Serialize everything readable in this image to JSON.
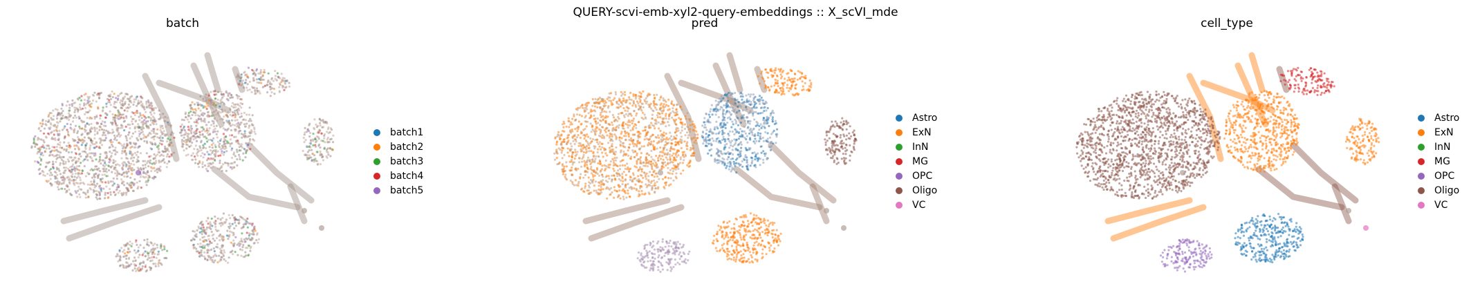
{
  "suptitle": "QUERY-scvi-emb-xyl2-query-embeddings :: X_scVI_mde",
  "chart_data": [
    {
      "type": "scatter",
      "title": "batch",
      "xlabel": "",
      "ylabel": "",
      "grid": false,
      "legend_position": "right",
      "legend": [
        {
          "name": "batch1",
          "color": "#1f77b4"
        },
        {
          "name": "batch2",
          "color": "#ff7f0e"
        },
        {
          "name": "batch3",
          "color": "#2ca02c"
        },
        {
          "name": "batch4",
          "color": "#d62728"
        },
        {
          "name": "batch5",
          "color": "#9467bd"
        }
      ]
    },
    {
      "type": "scatter",
      "title": "pred",
      "xlabel": "",
      "ylabel": "",
      "grid": false,
      "legend_position": "right",
      "legend": [
        {
          "name": "Astro",
          "color": "#1f77b4"
        },
        {
          "name": "ExN",
          "color": "#ff7f0e"
        },
        {
          "name": "InN",
          "color": "#2ca02c"
        },
        {
          "name": "MG",
          "color": "#d62728"
        },
        {
          "name": "OPC",
          "color": "#9467bd"
        },
        {
          "name": "Oligo",
          "color": "#8c564b"
        },
        {
          "name": "VC",
          "color": "#e377c2"
        }
      ]
    },
    {
      "type": "scatter",
      "title": "cell_type",
      "xlabel": "",
      "ylabel": "",
      "grid": false,
      "legend_position": "right",
      "legend": [
        {
          "name": "Astro",
          "color": "#1f77b4"
        },
        {
          "name": "ExN",
          "color": "#ff7f0e"
        },
        {
          "name": "InN",
          "color": "#2ca02c"
        },
        {
          "name": "MG",
          "color": "#d62728"
        },
        {
          "name": "OPC",
          "color": "#9467bd"
        },
        {
          "name": "Oligo",
          "color": "#8c564b"
        },
        {
          "name": "VC",
          "color": "#e377c2"
        }
      ]
    }
  ]
}
